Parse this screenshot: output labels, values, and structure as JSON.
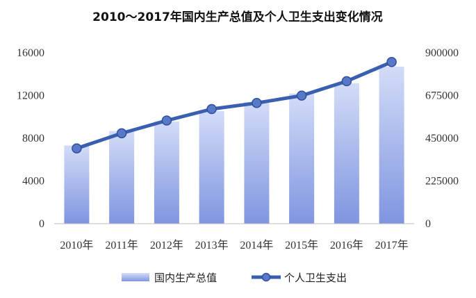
{
  "chart_data": {
    "type": "bar",
    "title": "2010～2017年国内生产总值及个人卫生支出变化情况",
    "categories": [
      "2010年",
      "2011年",
      "2012年",
      "2013年",
      "2014年",
      "2015年",
      "2016年",
      "2017年"
    ],
    "series": [
      {
        "name": "国内生产总值",
        "type": "bar",
        "axis": "right",
        "values": [
          412119,
          487940,
          538580,
          592963,
          641280,
          685993,
          740061,
          827122
        ],
        "color": "#8FA3E8"
      },
      {
        "name": "个人卫生支出",
        "type": "line",
        "axis": "left",
        "values": [
          7051,
          8465,
          9656,
          10730,
          11295,
          11992,
          13337,
          15134
        ],
        "color": "#3A5FB0"
      }
    ],
    "y_left": {
      "ylim": [
        0,
        16000
      ],
      "ticks": [
        "0",
        "4000",
        "8000",
        "12000",
        "16000"
      ]
    },
    "y_right": {
      "ylim": [
        0,
        900000
      ],
      "ticks": [
        "0",
        "225000",
        "450000",
        "675000",
        "900000"
      ]
    },
    "grid": false,
    "legend": {
      "position": "bottom",
      "entries": [
        "国内生产总值",
        "个人卫生支出"
      ]
    }
  }
}
